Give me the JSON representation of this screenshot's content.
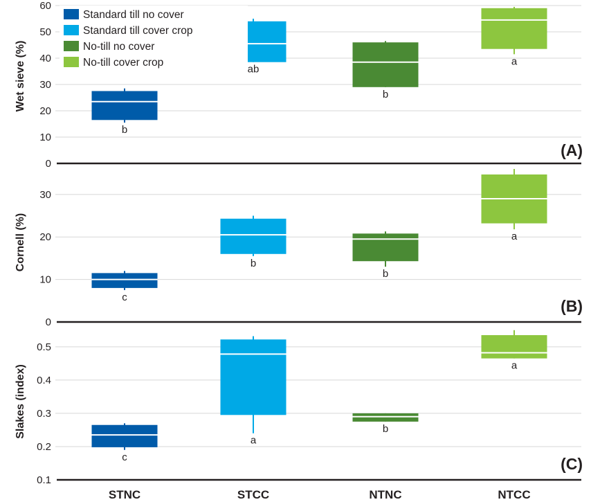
{
  "chart_data": {
    "type": "box",
    "categories": [
      "STNC",
      "STCC",
      "NTNC",
      "NTCC"
    ],
    "legend": {
      "position": "top-left",
      "entries": [
        {
          "name": "Standard till no cover",
          "color": "#005ba9"
        },
        {
          "name": "Standard till cover crop",
          "color": "#00a9e6"
        },
        {
          "name": "No-till no cover",
          "color": "#4a8a34"
        },
        {
          "name": "No-till cover crop",
          "color": "#8dc63f"
        }
      ]
    },
    "panels": [
      {
        "tag": "(A)",
        "ylabel": "Wet sieve (%)",
        "ylim": [
          0,
          60
        ],
        "yticks": [
          0,
          10,
          20,
          30,
          40,
          50,
          60
        ],
        "grid": true,
        "boxes": [
          {
            "q1": 16.5,
            "median": 23.5,
            "q3": 27.5,
            "whisker_low": 15.5,
            "whisker_high": 28.5,
            "letter": "b"
          },
          {
            "q1": 38.5,
            "median": 45.5,
            "q3": 54.0,
            "whisker_low": 38.5,
            "whisker_high": 55.0,
            "letter": "ab"
          },
          {
            "q1": 29.0,
            "median": 38.5,
            "q3": 46.0,
            "whisker_low": 29.0,
            "whisker_high": 46.5,
            "letter": "b"
          },
          {
            "q1": 43.5,
            "median": 54.5,
            "q3": 59.0,
            "whisker_low": 41.5,
            "whisker_high": 59.5,
            "letter": "a"
          }
        ]
      },
      {
        "tag": "(B)",
        "ylabel": "Cornell (%)",
        "ylim": [
          0,
          36
        ],
        "yticks": [
          0,
          10,
          20,
          30
        ],
        "grid": true,
        "boxes": [
          {
            "q1": 8.0,
            "median": 10.0,
            "q3": 11.5,
            "whisker_low": 7.5,
            "whisker_high": 12.0,
            "letter": "c"
          },
          {
            "q1": 16.0,
            "median": 20.5,
            "q3": 24.3,
            "whisker_low": 15.5,
            "whisker_high": 25.0,
            "letter": "b"
          },
          {
            "q1": 14.3,
            "median": 19.5,
            "q3": 20.8,
            "whisker_low": 13.0,
            "whisker_high": 21.3,
            "letter": "b"
          },
          {
            "q1": 23.2,
            "median": 29.0,
            "q3": 34.7,
            "whisker_low": 21.8,
            "whisker_high": 36.0,
            "letter": "a"
          }
        ]
      },
      {
        "tag": "(C)",
        "ylabel": "Slakes (index)",
        "ylim": [
          0.1,
          0.56
        ],
        "yticks": [
          0.1,
          0.2,
          0.3,
          0.4,
          0.5
        ],
        "grid": true,
        "boxes": [
          {
            "q1": 0.198,
            "median": 0.235,
            "q3": 0.265,
            "whisker_low": 0.19,
            "whisker_high": 0.27,
            "letter": "c"
          },
          {
            "q1": 0.295,
            "median": 0.478,
            "q3": 0.522,
            "whisker_low": 0.24,
            "whisker_high": 0.532,
            "letter": "a"
          },
          {
            "q1": 0.275,
            "median": 0.29,
            "q3": 0.3,
            "whisker_low": 0.275,
            "whisker_high": 0.3,
            "letter": "b"
          },
          {
            "q1": 0.465,
            "median": 0.482,
            "q3": 0.535,
            "whisker_low": 0.465,
            "whisker_high": 0.55,
            "letter": "a"
          }
        ]
      }
    ]
  }
}
